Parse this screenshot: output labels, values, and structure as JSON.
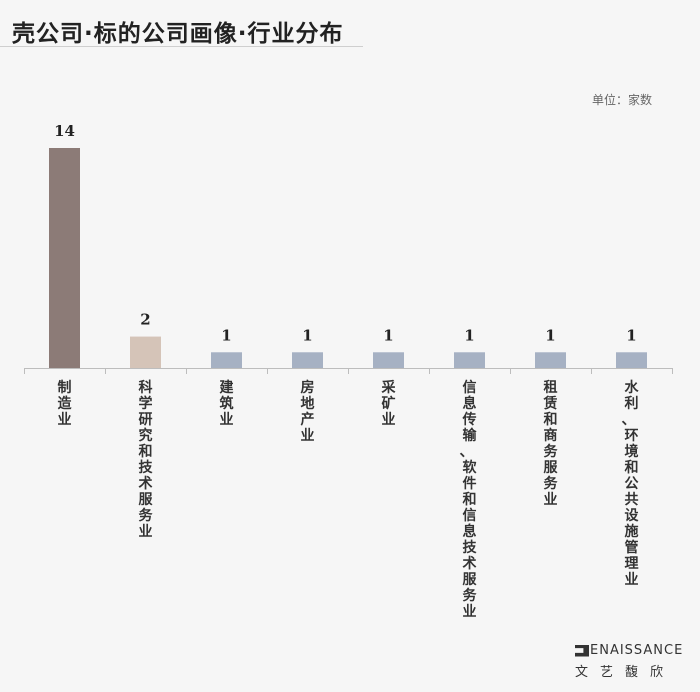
{
  "title": "壳公司·标的公司画像·行业分布",
  "unit_label": "单位：家数",
  "brand": {
    "english": "RENAISSANCE",
    "english_rest": "ENAISSANCE",
    "chinese": "文艺馥欣",
    "logo_icon": "renaissance-logo-icon"
  },
  "chart_data": {
    "type": "bar",
    "title": "壳公司·标的公司画像·行业分布",
    "xlabel": "",
    "ylabel": "单位：家数",
    "ylim": [
      0,
      14
    ],
    "grid": false,
    "categories": [
      "制造业",
      "科学研究和技术服务业",
      "建筑业",
      "房地产业",
      "采矿业",
      "信息传输、软件和信息技术服务业",
      "租赁和商务服务业",
      "水利、环境和公共设施管理业"
    ],
    "values": [
      14,
      2,
      1,
      1,
      1,
      1,
      1,
      1
    ],
    "data_labels": [
      "14",
      "2",
      "1",
      "1",
      "1",
      "1",
      "1",
      "1"
    ],
    "colors": [
      "#8c7b77",
      "#d5c4b8",
      "#a6b1c3",
      "#a6b1c3",
      "#a6b1c3",
      "#a6b1c3",
      "#a6b1c3",
      "#a6b1c3"
    ]
  }
}
